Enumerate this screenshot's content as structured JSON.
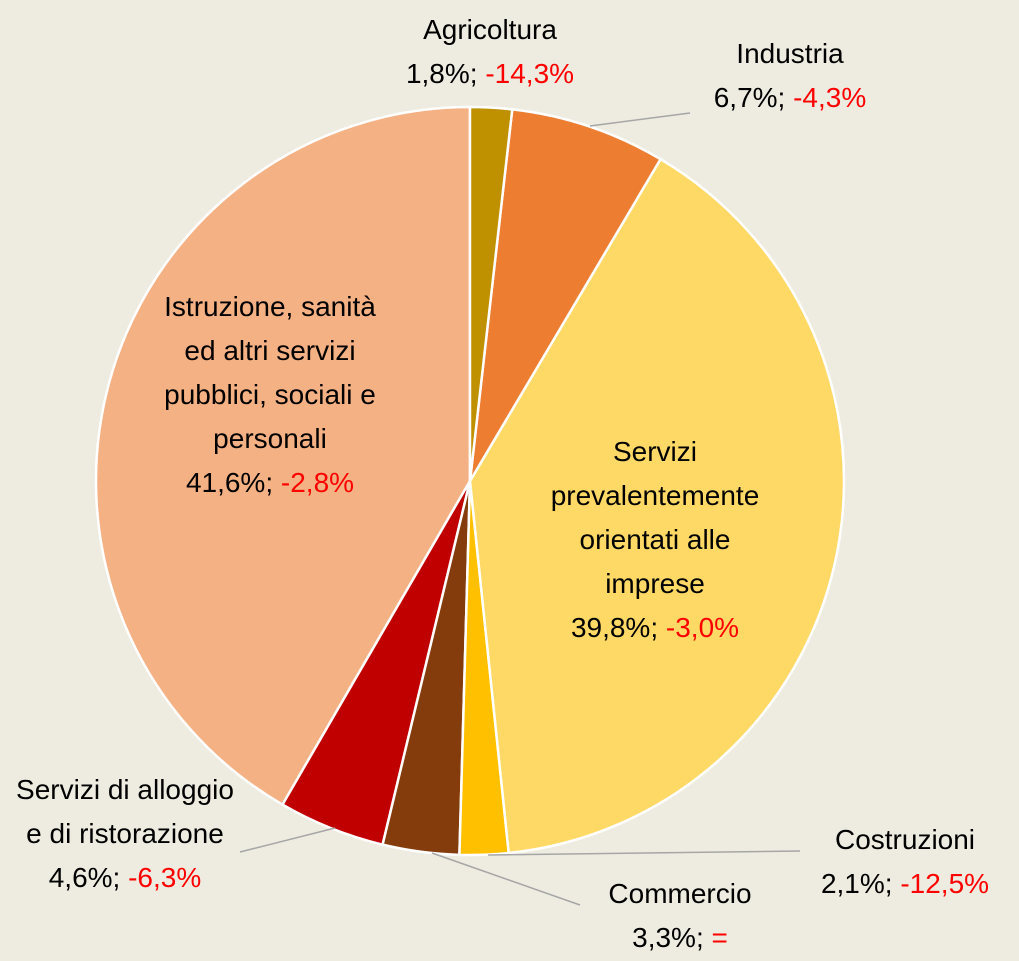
{
  "chart_data": {
    "type": "pie",
    "categories": [
      "Agricoltura",
      "Industria",
      "Servizi prevalentemente orientati alle imprese",
      "Costruzioni",
      "Commercio",
      "Servizi di alloggio e di ristorazione",
      "Istruzione, sanità ed altri servizi pubblici, sociali e personali"
    ],
    "values": [
      1.8,
      6.7,
      39.8,
      2.1,
      3.3,
      4.6,
      41.6
    ],
    "value_labels": [
      "1,8%",
      "6,7%",
      "39,8%",
      "2,1%",
      "3,3%",
      "4,6%",
      "41,6%"
    ],
    "separator": "; ",
    "change_labels": [
      "-14,3%",
      "-4,3%",
      "-3,0%",
      "-12,5%",
      "=",
      "-6,3%",
      "-2,8%"
    ],
    "colors": [
      "#bf9000",
      "#ed7d31",
      "#ffd966",
      "#ffc000",
      "#843c0c",
      "#c00000",
      "#f4b183"
    ]
  }
}
